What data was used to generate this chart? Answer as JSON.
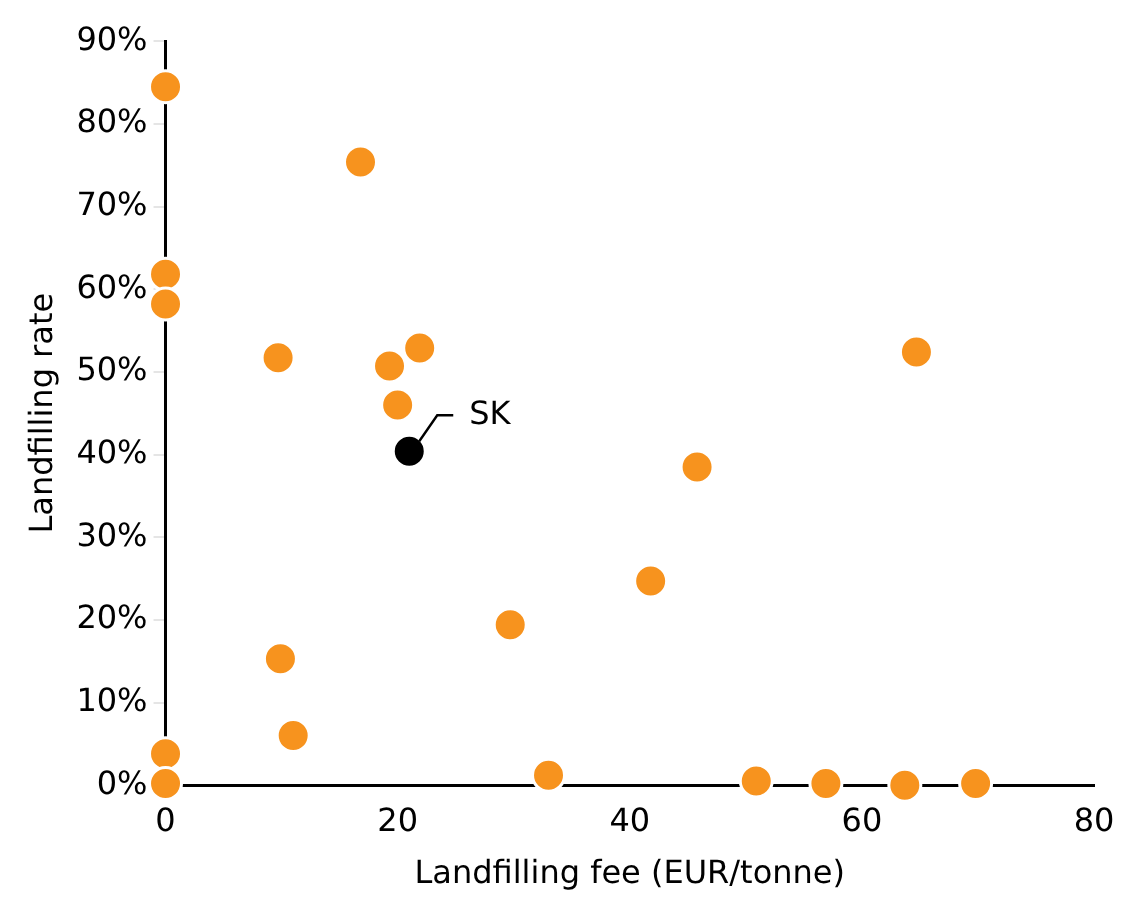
{
  "chart_data": {
    "type": "scatter",
    "xlabel": "Landfilling fee (EUR/tonne)",
    "ylabel": "Landfilling rate",
    "series": [
      {
        "color": "#f7931e",
        "x": [
          0,
          16.8,
          0,
          0,
          9.7,
          19.3,
          21.9,
          20.0,
          45.8,
          41.8,
          29.7,
          9.9,
          11.0,
          0,
          0,
          33.0,
          50.9,
          56.9,
          63.7,
          69.8,
          64.7
        ],
        "values": [
          84.5,
          75.4,
          61.8,
          58.2,
          51.7,
          50.7,
          52.9,
          46.0,
          38.5,
          24.7,
          19.4,
          15.3,
          6.0,
          3.8,
          0.2,
          1.2,
          0.5,
          0.2,
          0,
          0.2,
          52.4
        ]
      },
      {
        "color": "#000000",
        "x": [
          21.0
        ],
        "values": [
          40.4
        ]
      }
    ],
    "annotations": [
      {
        "text": "SK",
        "x": 21.0,
        "y": 40.4
      }
    ],
    "xlim": [
      0,
      80
    ],
    "xticks": [
      0,
      20,
      40,
      60,
      80
    ],
    "ylim": [
      0,
      90
    ],
    "yticks": [
      {
        "value": 0,
        "label": "0%"
      },
      {
        "value": 10,
        "label": "10%"
      },
      {
        "value": 20,
        "label": "20%"
      },
      {
        "value": 30,
        "label": "30%"
      },
      {
        "value": 40,
        "label": "40%"
      },
      {
        "value": 50,
        "label": "50%"
      },
      {
        "value": 60,
        "label": "60%"
      },
      {
        "value": 70,
        "label": "70%"
      },
      {
        "value": 80,
        "label": "80%"
      },
      {
        "value": 90,
        "label": "90%"
      }
    ],
    "marker": "circle",
    "grid": false,
    "legend": false
  }
}
